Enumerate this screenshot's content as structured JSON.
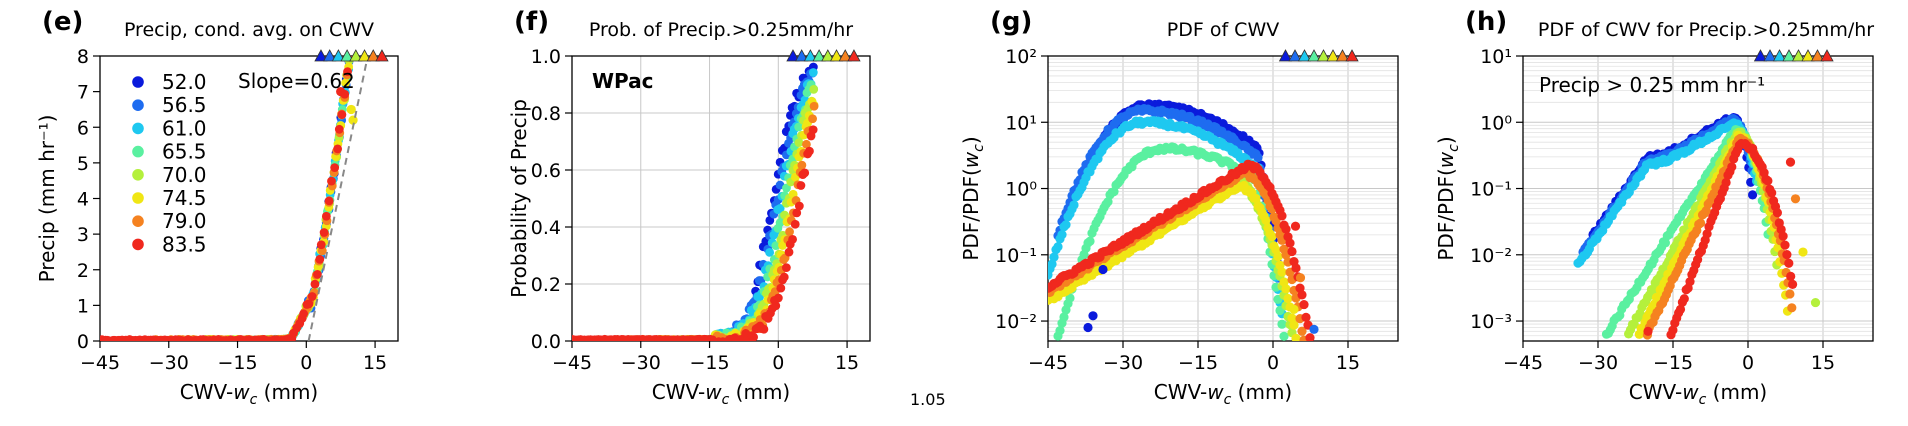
{
  "figure_note": "1.05",
  "colors": [
    "#0a1adc",
    "#1e6cf0",
    "#1ec8f0",
    "#5af0a0",
    "#b4f03c",
    "#f0e614",
    "#f58220",
    "#f0281e"
  ],
  "chart_data": [
    {
      "id": "e",
      "letter": "(e)",
      "type": "scatter",
      "title": "Precip, cond. avg. on CWV",
      "xlabel": "CWV-w_c (mm)",
      "ylabel": "Precip (mm hr⁻¹)",
      "xlim": [
        -45,
        20
      ],
      "ylim": [
        0,
        8
      ],
      "yscale": "linear",
      "xticks": [
        -45,
        -30,
        -15,
        0,
        15
      ],
      "xtick_labels": [
        "−45",
        "−30",
        "−15",
        "0",
        "15"
      ],
      "yticks": [
        0,
        1,
        2,
        3,
        4,
        5,
        6,
        7,
        8
      ],
      "ytick_labels": [
        "0",
        "1",
        "2",
        "3",
        "4",
        "5",
        "6",
        "7",
        "8"
      ],
      "grid": false,
      "legend": {
        "placement": "top-left",
        "entries": [
          "52.0",
          "56.5",
          "61.0",
          "65.5",
          "70.0",
          "74.5",
          "79.0",
          "83.5"
        ]
      },
      "annotation": "Slope=0.62",
      "fit_line": {
        "x0": 0.5,
        "x1": 16,
        "slope": 0.62
      }
    },
    {
      "id": "f",
      "letter": "(f)",
      "type": "scatter",
      "title": "Prob. of Precip.>0.25mm/hr",
      "xlabel": "CWV-w_c (mm)",
      "ylabel": "Probability of Precip",
      "xlim": [
        -45,
        20
      ],
      "ylim": [
        0,
        1
      ],
      "yscale": "linear",
      "xticks": [
        -45,
        -30,
        -15,
        0,
        15
      ],
      "xtick_labels": [
        "−45",
        "−30",
        "−15",
        "0",
        "15"
      ],
      "yticks": [
        0,
        0.2,
        0.4,
        0.6,
        0.8,
        1.0
      ],
      "ytick_labels": [
        "0.0",
        "0.2",
        "0.4",
        "0.6",
        "0.8",
        "1.0"
      ],
      "grid": true,
      "annotation": "WPac"
    },
    {
      "id": "g",
      "letter": "(g)",
      "type": "scatter",
      "title": "PDF of CWV",
      "xlabel": "CWV-w_c (mm)",
      "ylabel": "PDF/PDF(w_c)",
      "xlim": [
        -45,
        25
      ],
      "ylim": [
        0.005,
        100
      ],
      "yscale": "log",
      "xticks": [
        -45,
        -30,
        -15,
        0,
        15
      ],
      "xtick_labels": [
        "−45",
        "−30",
        "−15",
        "0",
        "15"
      ],
      "yticks": [
        0.01,
        0.1,
        1,
        10,
        100
      ],
      "ytick_labels": [
        "10⁻²",
        "10⁻¹",
        "10⁰",
        "10¹",
        "10²"
      ],
      "grid": true
    },
    {
      "id": "h",
      "letter": "(h)",
      "type": "scatter",
      "title": "PDF of CWV for Precip.>0.25mm/hr",
      "xlabel": "CWV-w_c (mm)",
      "ylabel": "PDF/PDF(w_c)",
      "xlim": [
        -45,
        25
      ],
      "ylim": [
        0.0005,
        10
      ],
      "yscale": "log",
      "xticks": [
        -45,
        -30,
        -15,
        0,
        15
      ],
      "xtick_labels": [
        "−45",
        "−30",
        "−15",
        "0",
        "15"
      ],
      "yticks": [
        0.001,
        0.01,
        0.1,
        1,
        10
      ],
      "ytick_labels": [
        "10⁻³",
        "10⁻²",
        "10⁻¹",
        "10⁰",
        "10¹"
      ],
      "grid": true,
      "annotation": "Precip > 0.25 mm hr⁻¹"
    }
  ]
}
